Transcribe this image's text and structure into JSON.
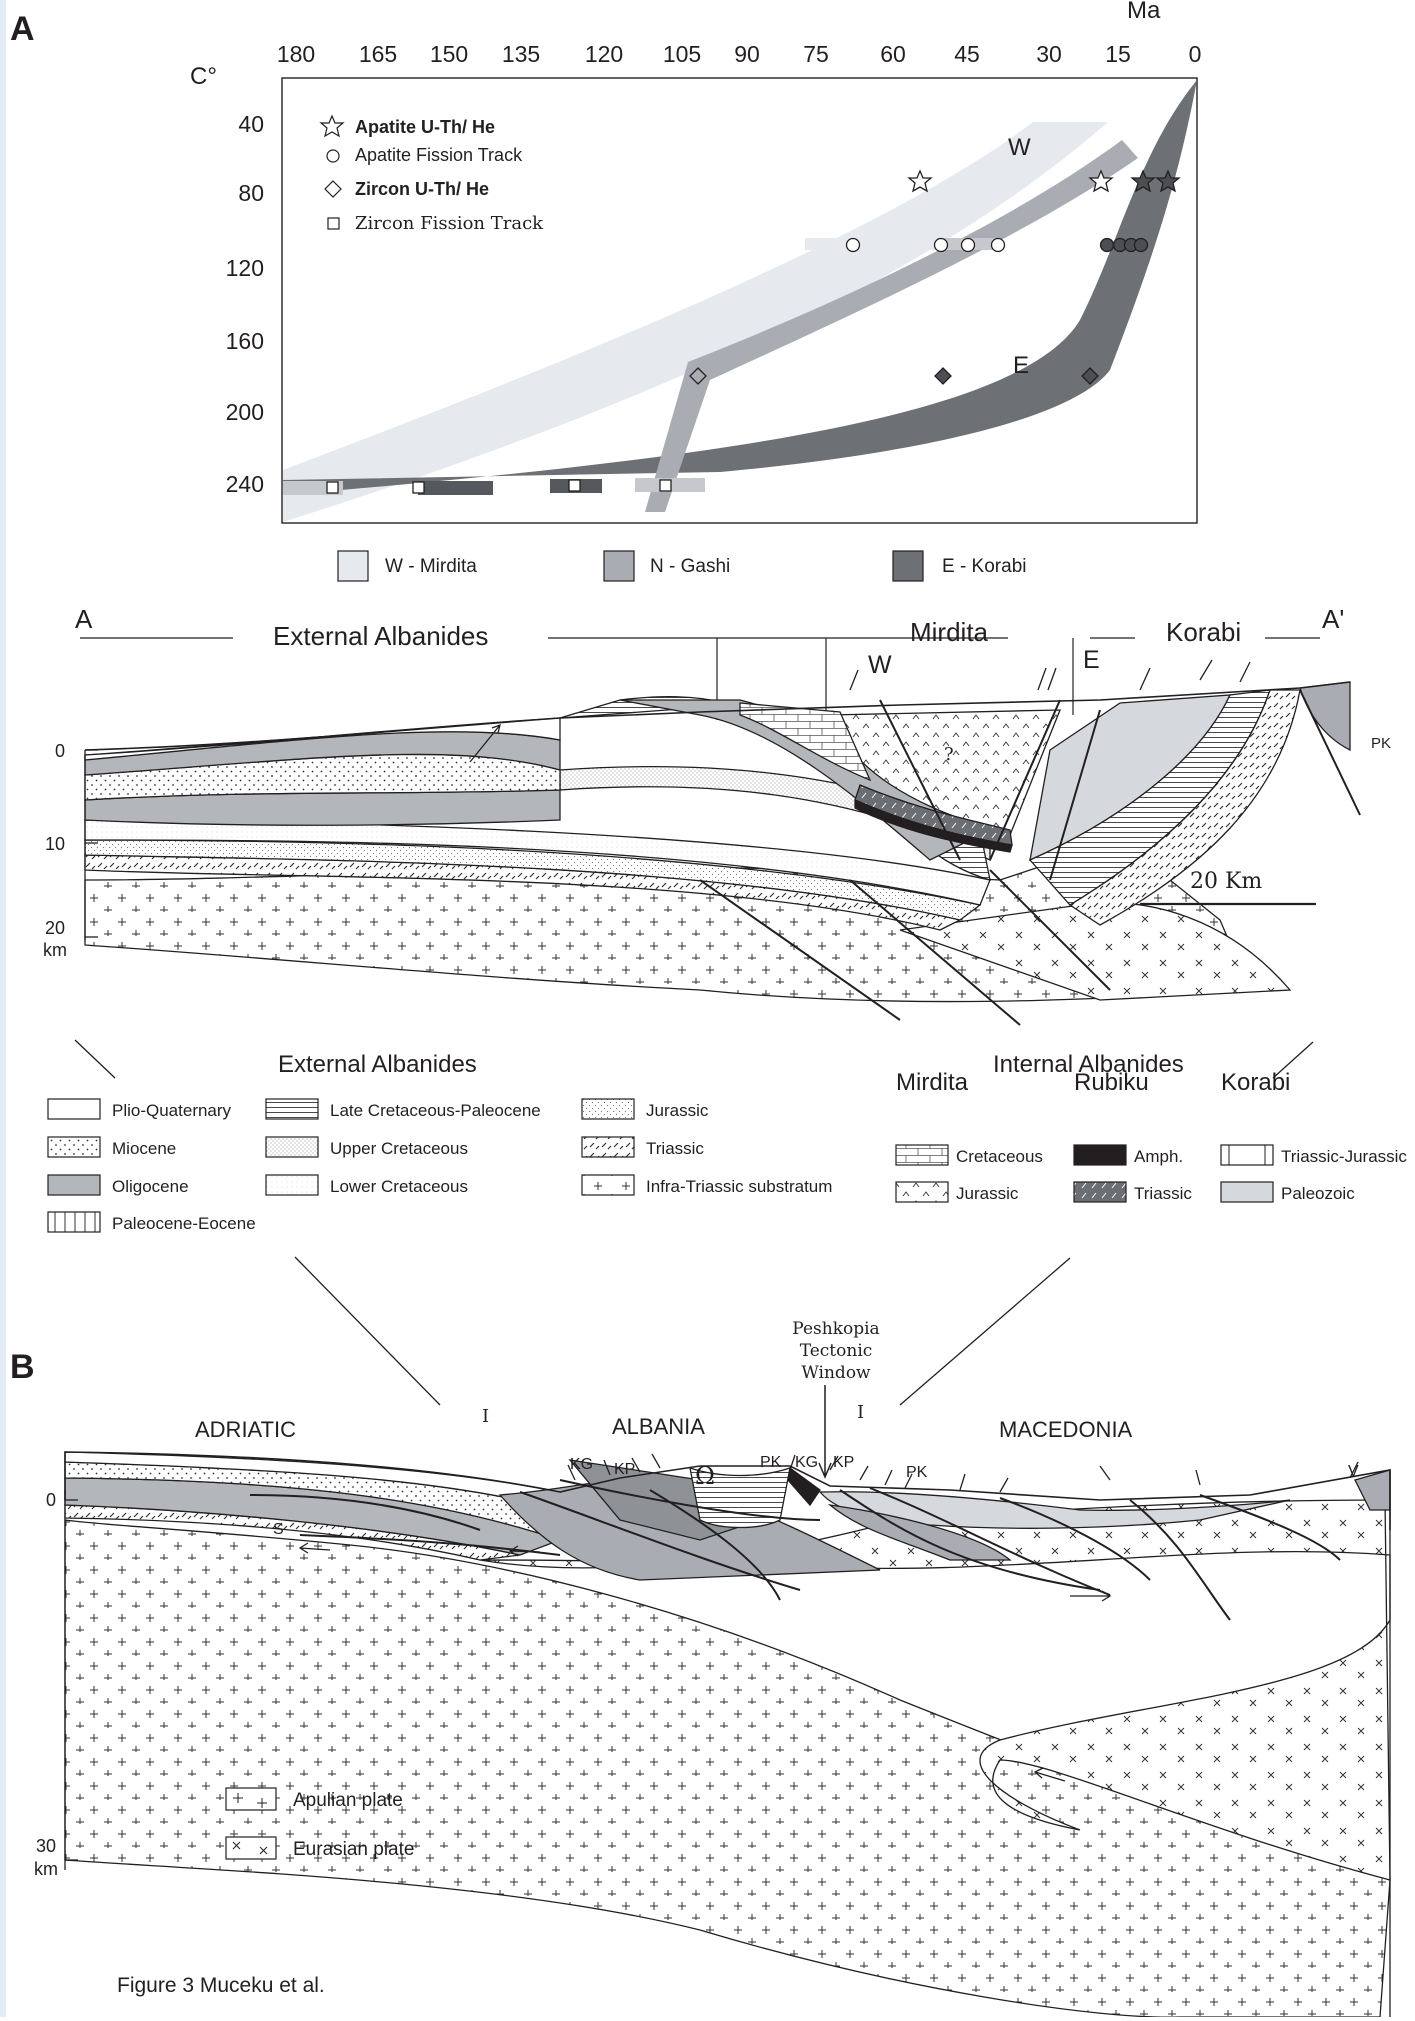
{
  "panel_a": {
    "label": "A",
    "x_unit": "Ma",
    "y_unit": "C°",
    "x_ticks": [
      "180",
      "165",
      "150",
      "135",
      "120",
      "105",
      "90",
      "75",
      "60",
      "45",
      "30",
      "15",
      "0"
    ],
    "y_ticks": [
      "40",
      "80",
      "120",
      "160",
      "200",
      "240"
    ],
    "legend": [
      {
        "symbol": "star-icon",
        "text": "Apatite U-Th/ He",
        "bold": true
      },
      {
        "symbol": "hexagon-icon",
        "text": "Apatite Fission Track",
        "bold": false
      },
      {
        "symbol": "diamond-icon",
        "text": "Zircon U-Th/ He",
        "bold": true
      },
      {
        "symbol": "square-icon",
        "text": "Zircon Fission Track",
        "bold": false
      }
    ],
    "band_labels": {
      "w": "W",
      "e": "E"
    },
    "bands": [
      {
        "text": "W - Mirdita",
        "color": "#e6e9ed"
      },
      {
        "text": "N - Gashi",
        "color": "#a9adb3"
      },
      {
        "text": "E - Korabi",
        "color": "#6d7075"
      }
    ]
  },
  "section_a": {
    "left_end": "A",
    "right_end": "A'",
    "domains": [
      "External Albanides",
      "Mirdita",
      "Korabi"
    ],
    "markers": [
      "W",
      "E",
      "PK",
      "?"
    ],
    "depth_ticks": [
      "0",
      "10",
      "20"
    ],
    "depth_unit": "km",
    "scale_bar": "20 Km"
  },
  "legend_section": {
    "external_title": "External Albanides",
    "internal_title": "Internal Albanides",
    "external_items": [
      {
        "text": "Plio-Quaternary",
        "pattern": "plain"
      },
      {
        "text": "Miocene",
        "pattern": "dots"
      },
      {
        "text": "Oligocene",
        "pattern": "grey"
      },
      {
        "text": "Paleocene-Eocene",
        "pattern": "vlines"
      },
      {
        "text": "Late Cretaceous-Paleocene",
        "pattern": "hlines"
      },
      {
        "text": "Upper Cretaceous",
        "pattern": "fine"
      },
      {
        "text": "Lower Cretaceous",
        "pattern": "veryfine"
      },
      {
        "text": "Jurassic",
        "pattern": "dots2"
      },
      {
        "text": "Triassic",
        "pattern": "dash"
      },
      {
        "text": "Infra-Triassic substratum",
        "pattern": "plus"
      }
    ],
    "internal_groups": [
      {
        "title": "Mirdita",
        "items": [
          {
            "text": "Cretaceous",
            "pattern": "brick"
          },
          {
            "text": "Jurassic",
            "pattern": "caret"
          }
        ]
      },
      {
        "title": "Rubiku",
        "items": [
          {
            "text": "Amph.",
            "pattern": "black"
          },
          {
            "text": "Triassic",
            "pattern": "greyhatch"
          }
        ]
      },
      {
        "title": "Korabi",
        "items": [
          {
            "text": "Triassic-Jurassic",
            "pattern": "bracket"
          },
          {
            "text": "Paleozoic",
            "pattern": "lightgrey"
          }
        ]
      }
    ]
  },
  "panel_b": {
    "label": "B",
    "regions": [
      "ADRIATIC",
      "ALBANIA",
      "MACEDONIA"
    ],
    "window_label": [
      "Peshkopia",
      "Tectonic",
      "Window"
    ],
    "markers": [
      "KG",
      "KP",
      "Ω",
      "PK",
      "KG",
      "KP",
      "PK",
      "V",
      "S",
      "I",
      "I"
    ],
    "depth_ticks": [
      "0",
      "30"
    ],
    "depth_unit": "km",
    "legend": [
      {
        "text": "Apulian plate",
        "pattern": "plus"
      },
      {
        "text": "Eurasian plate",
        "pattern": "cross"
      }
    ]
  },
  "caption": "Figure 3 Muceku et al."
}
